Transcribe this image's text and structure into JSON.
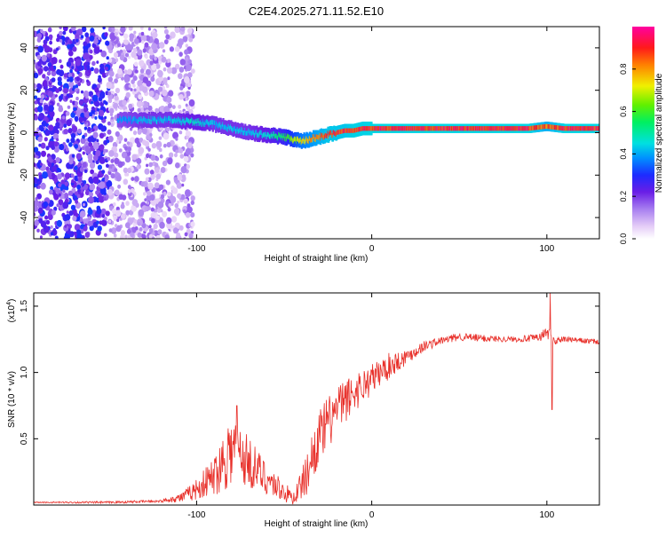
{
  "title": "C2E4.2025.271.11.52.E10",
  "chart_data": [
    {
      "type": "heatmap",
      "name": "spectrogram",
      "xlabel": "Height of straight line (km)",
      "ylabel": "Frequency (Hz)",
      "xlim": [
        -193,
        130
      ],
      "ylim": [
        -50,
        50
      ],
      "x_ticks": [
        -100,
        0,
        100
      ],
      "x_tick_labels": [
        "-100",
        "0",
        "100"
      ],
      "y_ticks": [
        -40,
        -20,
        0,
        20,
        40
      ],
      "y_tick_labels": [
        "-40",
        "-20",
        "0",
        "20",
        "40"
      ],
      "colorbar": {
        "label": "Normalized spectral amplitude",
        "range": [
          0,
          1
        ],
        "ticks": [
          0.0,
          0.2,
          0.4,
          0.6,
          0.8
        ],
        "tick_labels": [
          "0.0",
          "0.2",
          "0.4",
          "0.6",
          "0.8"
        ]
      },
      "ridge": {
        "x": [
          -145,
          -130,
          -115,
          -100,
          -90,
          -80,
          -70,
          -60,
          -50,
          -45,
          -40,
          -35,
          -30,
          -25,
          -20,
          -15,
          -10,
          -5,
          0,
          10,
          30,
          60,
          90,
          100,
          110,
          130
        ],
        "y": [
          6,
          6,
          6,
          5,
          4,
          2,
          0,
          -1,
          -2,
          -3,
          -4,
          -3,
          -2,
          -1,
          0,
          1,
          1,
          2,
          2,
          2,
          2,
          2,
          2,
          3,
          2,
          2
        ],
        "amplitude": [
          0.4,
          0.45,
          0.45,
          0.5,
          0.45,
          0.45,
          0.45,
          0.5,
          0.6,
          0.7,
          0.8,
          0.85,
          0.9,
          0.95,
          0.95,
          0.95,
          0.97,
          0.97,
          0.98,
          0.98,
          0.98,
          0.98,
          0.98,
          0.9,
          0.98,
          0.98
        ]
      }
    },
    {
      "type": "line",
      "name": "snr",
      "xlabel": "Height of straight line (km)",
      "ylabel": "SNR (10 * v/v)",
      "y_scale_label": "(x10",
      "y_scale_exponent": "4",
      "y_scale_close": ")",
      "xlim": [
        -193,
        130
      ],
      "ylim": [
        0,
        1.6
      ],
      "x_ticks": [
        -100,
        0,
        100
      ],
      "x_tick_labels": [
        "-100",
        "0",
        "100"
      ],
      "y_ticks": [
        0.5,
        1.0,
        1.5
      ],
      "y_tick_labels": [
        "0.5",
        "1.0",
        "1.5"
      ],
      "color": "#e8302a",
      "envelope": {
        "x": [
          -193,
          -150,
          -120,
          -108,
          -100,
          -90,
          -82,
          -78,
          -70,
          -60,
          -50,
          -45,
          -38,
          -32,
          -28,
          -20,
          -10,
          0,
          10,
          20,
          30,
          40,
          50,
          60,
          80,
          95,
          100,
          102,
          104,
          110,
          130
        ],
        "y": [
          0.02,
          0.02,
          0.03,
          0.06,
          0.12,
          0.22,
          0.4,
          0.42,
          0.32,
          0.2,
          0.1,
          0.05,
          0.2,
          0.45,
          0.55,
          0.72,
          0.85,
          0.95,
          1.05,
          1.12,
          1.2,
          1.24,
          1.27,
          1.26,
          1.25,
          1.26,
          1.3,
          1.3,
          1.24,
          1.25,
          1.23
        ],
        "noise": [
          0.005,
          0.008,
          0.01,
          0.04,
          0.08,
          0.15,
          0.28,
          0.25,
          0.2,
          0.12,
          0.08,
          0.05,
          0.15,
          0.2,
          0.22,
          0.18,
          0.15,
          0.12,
          0.1,
          0.06,
          0.04,
          0.03,
          0.03,
          0.03,
          0.02,
          0.03,
          0.05,
          0.05,
          0.04,
          0.02,
          0.02
        ]
      },
      "spikes": [
        {
          "x": -77,
          "y": 0.75
        },
        {
          "x": 102,
          "y": 1.6
        },
        {
          "x": 103,
          "y": 0.72
        }
      ]
    }
  ]
}
